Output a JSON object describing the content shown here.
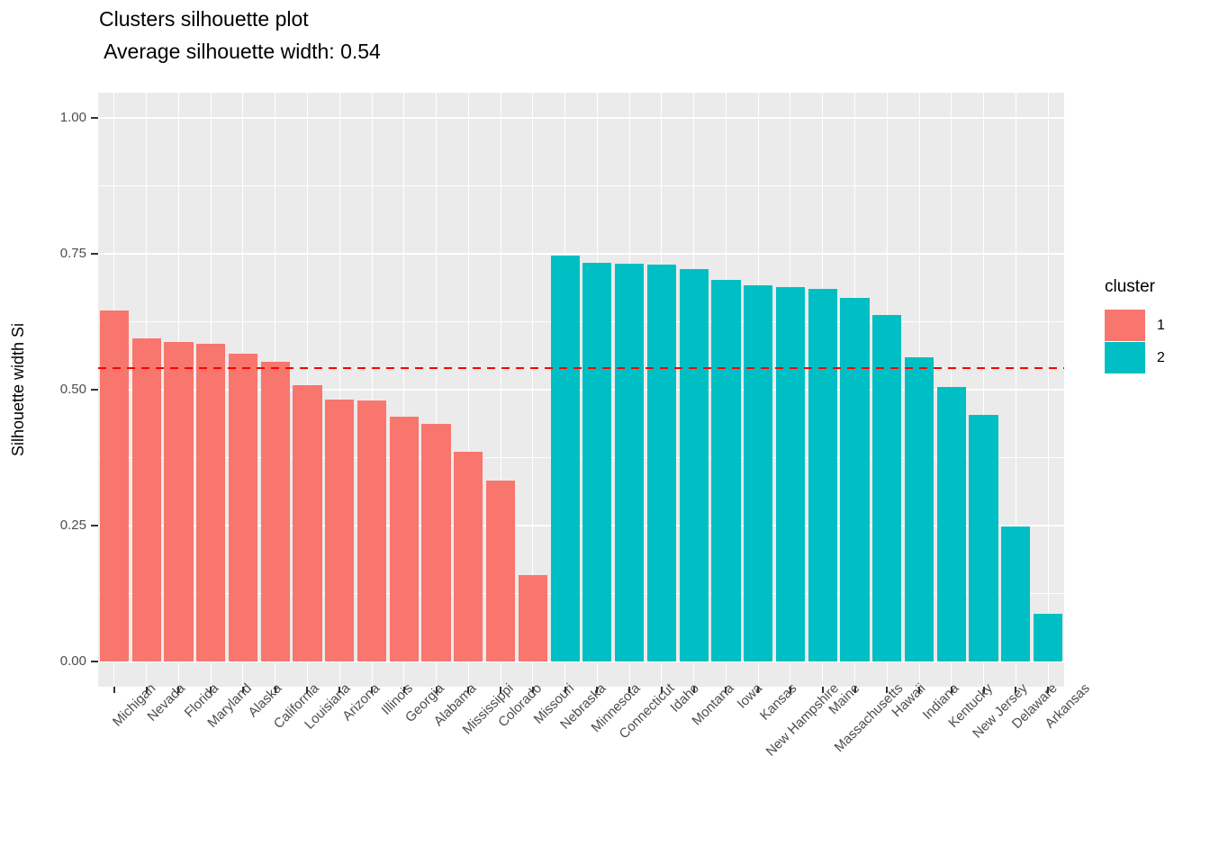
{
  "header": {
    "title": "Clusters silhouette plot",
    "subtitle": " Average silhouette width: 0.54"
  },
  "legend": {
    "title": "cluster",
    "entries": [
      {
        "label": "1",
        "color": "#F8766D"
      },
      {
        "label": "2",
        "color": "#00BFC4"
      }
    ],
    "position": "right"
  },
  "chart_data": {
    "type": "bar",
    "title": "Clusters silhouette plot",
    "subtitle": "Average silhouette width: 0.54",
    "xlabel": "",
    "ylabel": "Silhouette width Si",
    "ylim": [
      0,
      1
    ],
    "yticks": [
      0,
      0.25,
      0.5,
      0.75,
      1
    ],
    "yticklabels": [
      "0.00",
      "0.25",
      "0.50",
      "0.75",
      "1.00"
    ],
    "grid": "on",
    "avg_silhouette_width": 0.54,
    "avg_line_color": "#FF0000",
    "panel_background": "#EBEBEB",
    "cluster_colors": {
      "1": "#F8766D",
      "2": "#00BFC4"
    },
    "categories": [
      "Michigan",
      "Nevada",
      "Florida",
      "Maryland",
      "Alaska",
      "California",
      "Louisiana",
      "Arizona",
      "Illinois",
      "Georgia",
      "Alabama",
      "Mississippi",
      "Colorado",
      "Missouri",
      "Nebraska",
      "Minnesota",
      "Connecticut",
      "Idaho",
      "Montana",
      "Iowa",
      "Kansas",
      "New Hampshire",
      "Maine",
      "Massachusetts",
      "Hawaii",
      "Indiana",
      "Kentucky",
      "New Jersey",
      "Delaware",
      "Arkansas"
    ],
    "values": [
      0.645,
      0.594,
      0.587,
      0.584,
      0.567,
      0.551,
      0.509,
      0.481,
      0.48,
      0.451,
      0.437,
      0.386,
      0.332,
      0.159,
      0.747,
      0.734,
      0.732,
      0.73,
      0.722,
      0.702,
      0.692,
      0.688,
      0.685,
      0.669,
      0.637,
      0.56,
      0.505,
      0.454,
      0.248,
      0.088
    ],
    "clusters": [
      1,
      1,
      1,
      1,
      1,
      1,
      1,
      1,
      1,
      1,
      1,
      1,
      1,
      1,
      2,
      2,
      2,
      2,
      2,
      2,
      2,
      2,
      2,
      2,
      2,
      2,
      2,
      2,
      2,
      2
    ],
    "series": [
      {
        "name": "1",
        "color": "#F8766D",
        "categories": [
          "Michigan",
          "Nevada",
          "Florida",
          "Maryland",
          "Alaska",
          "California",
          "Louisiana",
          "Arizona",
          "Illinois",
          "Georgia",
          "Alabama",
          "Mississippi",
          "Colorado",
          "Missouri"
        ],
        "values": [
          0.645,
          0.594,
          0.587,
          0.584,
          0.567,
          0.551,
          0.509,
          0.481,
          0.48,
          0.451,
          0.437,
          0.386,
          0.332,
          0.159
        ]
      },
      {
        "name": "2",
        "color": "#00BFC4",
        "categories": [
          "Nebraska",
          "Minnesota",
          "Connecticut",
          "Idaho",
          "Montana",
          "Iowa",
          "Kansas",
          "New Hampshire",
          "Maine",
          "Massachusetts",
          "Hawaii",
          "Indiana",
          "Kentucky",
          "New Jersey",
          "Delaware",
          "Arkansas"
        ],
        "values": [
          0.747,
          0.734,
          0.732,
          0.73,
          0.722,
          0.702,
          0.692,
          0.688,
          0.685,
          0.669,
          0.637,
          0.56,
          0.505,
          0.454,
          0.248,
          0.088
        ]
      }
    ]
  }
}
